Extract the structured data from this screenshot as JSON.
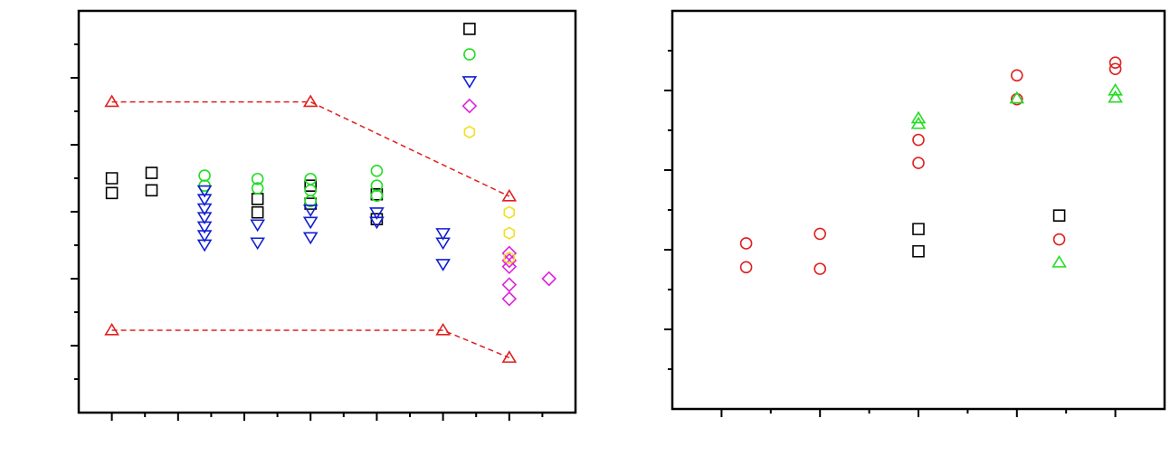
{
  "chart_data": [
    {
      "type": "scatter",
      "xlim": [
        0.5,
        8
      ],
      "ylim": [
        0,
        6
      ],
      "xticks": [
        1,
        1.5,
        2,
        2.5,
        3,
        3.5,
        4,
        4.5,
        5,
        5.5,
        6,
        6.5,
        7,
        7.5
      ],
      "yticks": [
        0.5,
        1,
        1.5,
        2,
        2.5,
        3,
        3.5,
        4,
        4.5,
        5,
        5.5
      ],
      "series": [
        {
          "color": "#e02020",
          "marker": "triangle",
          "line": "dashed",
          "x": [
            1,
            4,
            7,
            null,
            1,
            6,
            7
          ],
          "values": [
            4.64,
            4.64,
            3.23,
            null,
            1.23,
            1.23,
            0.82
          ]
        },
        {
          "color": "#000000",
          "marker": "square",
          "x": [
            1,
            1,
            1.6,
            1.6,
            3.2,
            3.2,
            4,
            4,
            5,
            5,
            6.4
          ],
          "values": [
            3.5,
            3.28,
            3.58,
            3.32,
            3.19,
            2.99,
            3.39,
            3.12,
            3.26,
            2.89,
            5.73
          ]
        },
        {
          "color": "#22dd22",
          "marker": "circle",
          "x": [
            2.4,
            2.4,
            3.2,
            3.2,
            4,
            4,
            4,
            5,
            5,
            5,
            6.4
          ],
          "values": [
            3.54,
            3.39,
            3.49,
            3.35,
            3.49,
            3.32,
            3.16,
            3.61,
            3.39,
            3.24,
            5.35
          ]
        },
        {
          "color": "#1020d0",
          "marker": "triangle-down",
          "x": [
            2.4,
            2.4,
            2.4,
            2.4,
            2.4,
            2.4,
            2.4,
            3.2,
            3.2,
            4,
            4,
            4,
            5,
            5,
            6,
            6,
            6,
            6.4
          ],
          "values": [
            3.32,
            3.19,
            3.05,
            2.92,
            2.78,
            2.65,
            2.51,
            2.81,
            2.54,
            3.03,
            2.85,
            2.62,
            2.99,
            2.85,
            2.68,
            2.54,
            2.22,
            4.95
          ]
        },
        {
          "color": "#dd22dd",
          "marker": "diamond",
          "x": [
            6.4,
            7,
            7,
            7,
            7,
            7,
            7.6
          ],
          "values": [
            4.58,
            2.38,
            2.27,
            2.18,
            1.91,
            1.7,
            2.0
          ]
        },
        {
          "color": "#f0e020",
          "marker": "hexagon",
          "x": [
            6.4,
            7,
            7,
            7
          ],
          "values": [
            4.19,
            2.99,
            2.68,
            2.31
          ]
        }
      ]
    },
    {
      "type": "scatter",
      "xlim": [
        0.5,
        5.5
      ],
      "ylim": [
        0,
        5
      ],
      "xticks": [
        1,
        1.5,
        2,
        2.5,
        3,
        3.5,
        4,
        4.5,
        5
      ],
      "yticks": [
        0.5,
        1,
        1.5,
        2,
        2.5,
        3,
        3.5,
        4,
        4.5
      ],
      "series": [
        {
          "color": "#e02020",
          "marker": "circle",
          "x": [
            1.25,
            1.25,
            2,
            2,
            3,
            3,
            4,
            4,
            4.43,
            5,
            5
          ],
          "values": [
            2.08,
            1.78,
            2.2,
            1.76,
            3.38,
            3.09,
            4.19,
            3.89,
            2.13,
            4.35,
            4.27
          ]
        },
        {
          "color": "#000000",
          "marker": "square",
          "x": [
            3,
            3,
            4.43
          ],
          "values": [
            2.26,
            1.98,
            2.43
          ]
        },
        {
          "color": "#22dd22",
          "marker": "triangle",
          "x": [
            3,
            3,
            4,
            4.43,
            5,
            5
          ],
          "values": [
            3.65,
            3.58,
            3.9,
            1.84,
            4.0,
            3.91
          ]
        }
      ]
    }
  ]
}
